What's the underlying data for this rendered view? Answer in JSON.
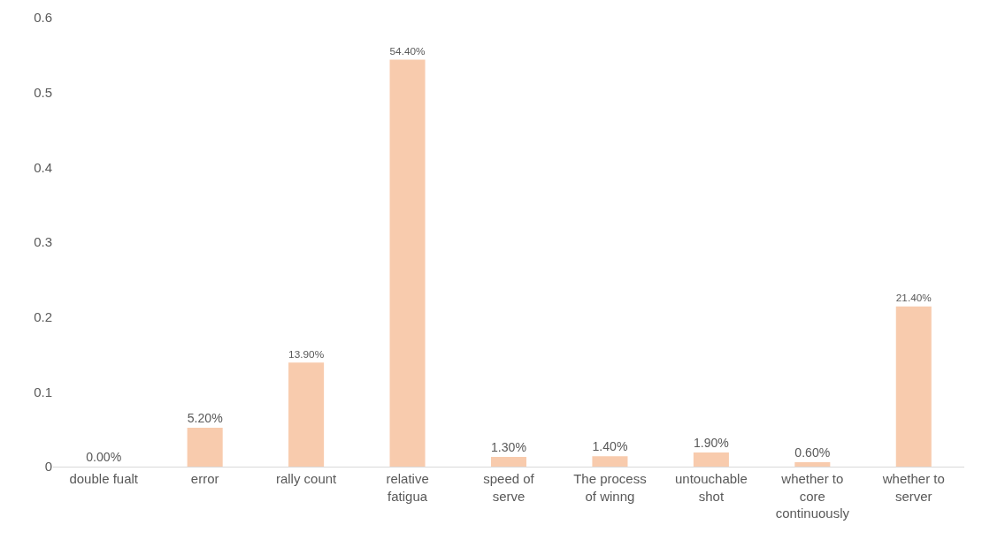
{
  "chart_data": {
    "type": "bar",
    "categories": [
      "double fualt",
      "error",
      "rally count",
      "relative fatigua",
      "speed of serve",
      "The process of winng",
      "untouchable shot",
      "whether to core continuously",
      "whether to server"
    ],
    "values": [
      0,
      0.052,
      0.139,
      0.544,
      0.013,
      0.014,
      0.019,
      0.006,
      0.214
    ],
    "value_labels": [
      "0.00%",
      "5.20%",
      "13.90%",
      "54.40%",
      "1.30%",
      "1.40%",
      "1.90%",
      "0.60%",
      "21.40%"
    ],
    "color": "#f8cbad",
    "ylim": [
      0,
      0.6
    ],
    "yticks": [
      0,
      0.1,
      0.2,
      0.3,
      0.4,
      0.5,
      0.6
    ],
    "grid": false,
    "legend": false
  }
}
